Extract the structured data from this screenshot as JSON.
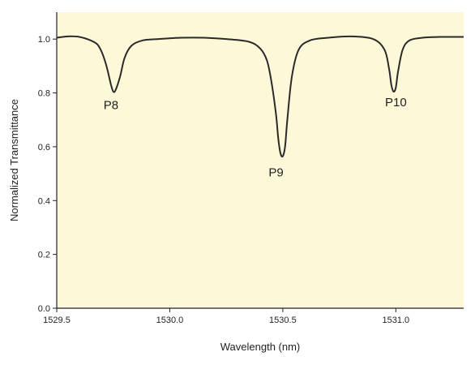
{
  "chart_data": {
    "type": "line",
    "title": "",
    "xlabel": "Wavelength (nm)",
    "ylabel": "Normalized Transmittance",
    "xlim": [
      1529.5,
      1531.3
    ],
    "ylim": [
      0.0,
      1.1
    ],
    "x_ticks": [
      1529.5,
      1530.0,
      1530.5,
      1531.0
    ],
    "x_tick_labels": [
      "1529.5",
      "1530.0",
      "1530.5",
      "1531.0"
    ],
    "y_ticks": [
      0.0,
      0.2,
      0.4,
      0.6,
      0.8,
      1.0
    ],
    "y_tick_labels": [
      "0.0",
      "0.2",
      "0.4",
      "0.6",
      "0.8",
      "1.0"
    ],
    "grid": false,
    "legend": "none",
    "series": [
      {
        "x": [
          1529.5,
          1529.55,
          1529.6,
          1529.65,
          1529.68,
          1529.7,
          1529.72,
          1529.74,
          1529.75,
          1529.76,
          1529.78,
          1529.8,
          1529.83,
          1529.88,
          1529.95,
          1530.05,
          1530.15,
          1530.25,
          1530.35,
          1530.4,
          1530.43,
          1530.45,
          1530.47,
          1530.48,
          1530.49,
          1530.5,
          1530.51,
          1530.52,
          1530.54,
          1530.57,
          1530.62,
          1530.7,
          1530.8,
          1530.9,
          1530.95,
          1530.97,
          1530.98,
          1530.99,
          1531.0,
          1531.01,
          1531.03,
          1531.06,
          1531.12,
          1531.2,
          1531.3
        ],
        "y": [
          1.005,
          1.01,
          1.008,
          0.995,
          0.98,
          0.95,
          0.9,
          0.83,
          0.805,
          0.81,
          0.86,
          0.93,
          0.975,
          0.995,
          1.0,
          1.005,
          1.005,
          1.0,
          0.99,
          0.965,
          0.92,
          0.84,
          0.72,
          0.63,
          0.575,
          0.565,
          0.6,
          0.7,
          0.86,
          0.96,
          0.995,
          1.005,
          1.01,
          1.0,
          0.96,
          0.89,
          0.83,
          0.805,
          0.82,
          0.88,
          0.96,
          0.995,
          1.005,
          1.008,
          1.008
        ]
      }
    ],
    "annotations": [
      {
        "text": "P8",
        "x": 1529.74,
        "y": 0.74
      },
      {
        "text": "P9",
        "x": 1530.47,
        "y": 0.49
      },
      {
        "text": "P10",
        "x": 1531.0,
        "y": 0.75
      }
    ],
    "colors": {
      "plot_background": "#fdf8d8",
      "line": "#2a2a2a",
      "axis": "#222222"
    }
  }
}
